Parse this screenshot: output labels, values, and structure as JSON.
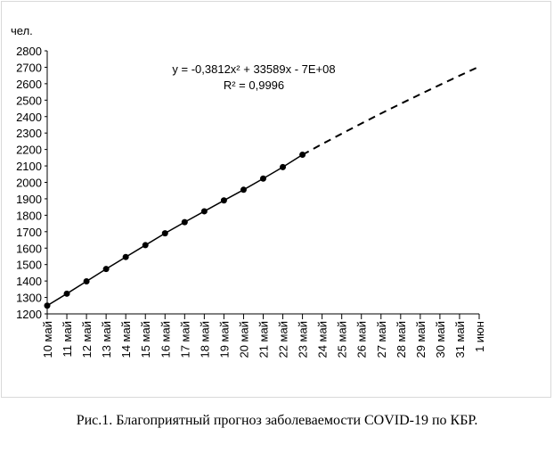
{
  "chart_data": {
    "type": "line",
    "y_label": "чел.",
    "annotations": [
      "y = -0,3812x² + 33589x - 7E+08",
      "R² = 0,9996"
    ],
    "caption": "Рис.1. Благоприятный прогноз заболеваемости COVID-19 по КБР.",
    "categories": [
      "10 май",
      "11 май",
      "12 май",
      "13 май",
      "14 май",
      "15 май",
      "16 май",
      "17 май",
      "18 май",
      "19 май",
      "20 май",
      "21 май",
      "22 май",
      "23 май",
      "24 май",
      "25 май",
      "26 май",
      "27 май",
      "28 май",
      "29 май",
      "30 май",
      "31 май",
      "1 июн"
    ],
    "series": [
      {
        "color": "#000000",
        "markers": true,
        "dashed": false,
        "values": [
          1250,
          1323,
          1398,
          1473,
          1546,
          1618,
          1690,
          1758,
          1824,
          1890,
          1955,
          2023,
          2093,
          2168,
          null,
          null,
          null,
          null,
          null,
          null,
          null,
          null,
          null
        ]
      },
      {
        "color": "#000000",
        "markers": false,
        "dashed": true,
        "values": [
          null,
          null,
          null,
          null,
          null,
          null,
          null,
          null,
          null,
          null,
          null,
          null,
          null,
          2168,
          2233,
          2296,
          2358,
          2419,
          2478,
          2536,
          2593,
          2649,
          2704
        ]
      }
    ],
    "ylim": [
      1200,
      2800
    ],
    "yticks": [
      1200,
      1300,
      1400,
      1500,
      1600,
      1700,
      1800,
      1900,
      2000,
      2100,
      2200,
      2300,
      2400,
      2500,
      2600,
      2700,
      2800
    ],
    "grid": false
  }
}
